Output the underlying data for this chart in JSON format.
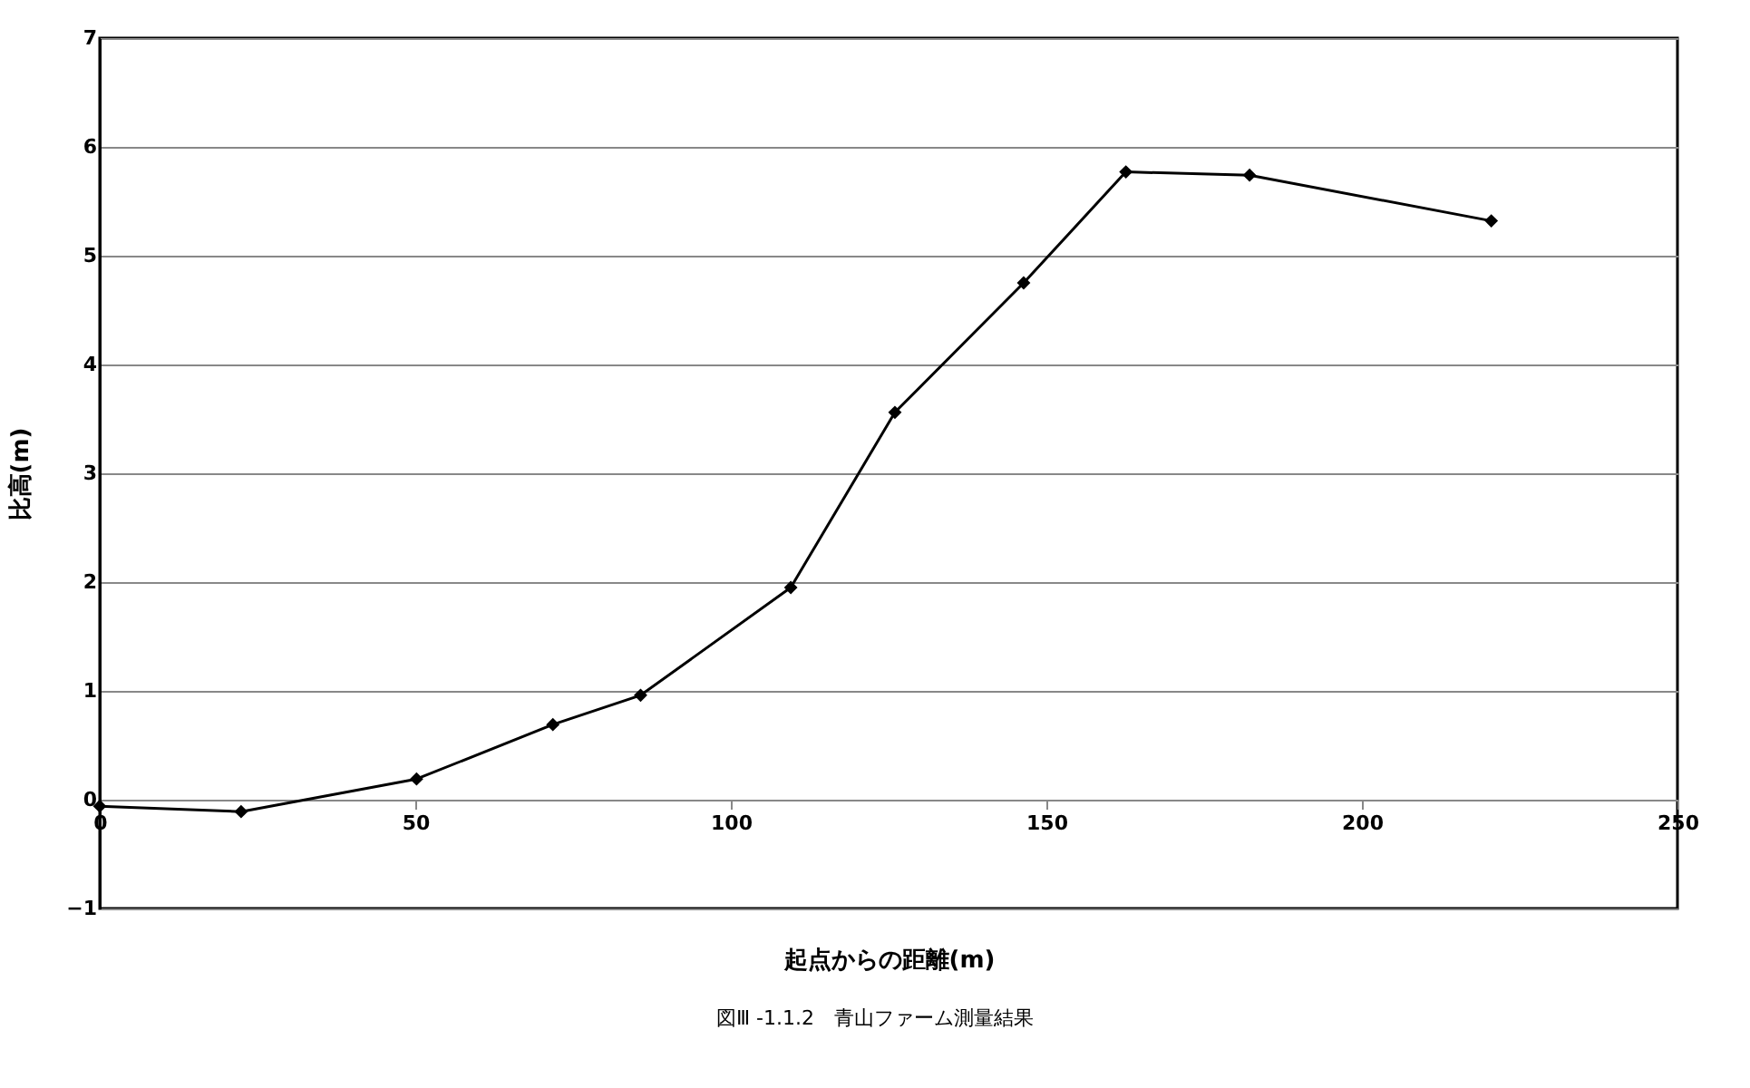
{
  "chart_data": {
    "type": "line",
    "xlabel": "起点からの距離(m)",
    "ylabel": "比高(m)",
    "x": [
      0,
      22.4,
      50.2,
      71.8,
      85.7,
      109.5,
      126,
      146.4,
      162.6,
      182.2,
      220.5
    ],
    "series": [
      {
        "color": "#000000",
        "values": [
          -0.06,
          -0.11,
          0.19,
          0.69,
          0.96,
          1.95,
          3.56,
          4.75,
          5.77,
          5.74,
          5.32
        ]
      }
    ],
    "xlim": [
      0,
      250
    ],
    "xticks": [
      0,
      50,
      100,
      150,
      200,
      250
    ],
    "ylim": [
      -1,
      7
    ],
    "yticks": [
      -1,
      0,
      1,
      2,
      3,
      4,
      5,
      6,
      7
    ],
    "grid": "y",
    "marker": "diamond",
    "line_style": "solid",
    "legend": false,
    "annotations": [
      "図Ⅲ -1.1.2　青山ファーム測量結果"
    ]
  }
}
